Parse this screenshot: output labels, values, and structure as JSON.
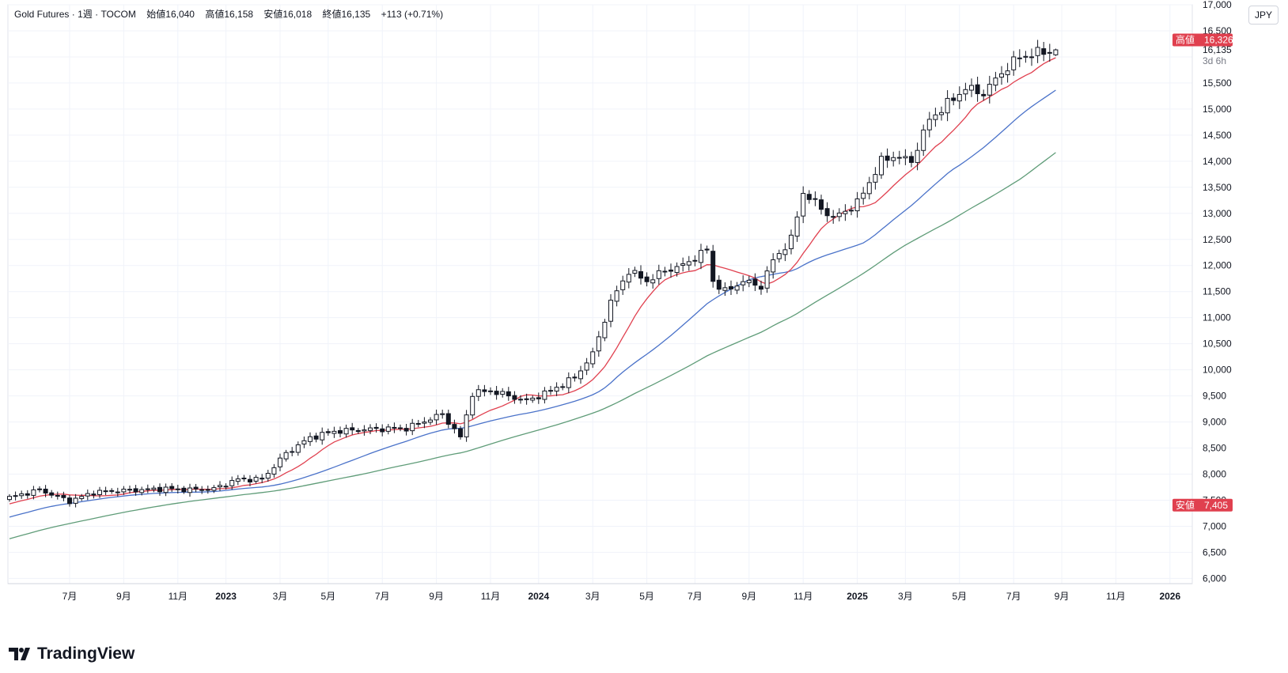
{
  "header": {
    "symbol": "Gold Futures",
    "interval": "1週",
    "exchange": "TOCOM",
    "open_label": "始値",
    "open": "16,040",
    "high_label": "高値",
    "high": "16,158",
    "low_label": "安値",
    "low": "16,018",
    "close_label": "終値",
    "close": "16,135",
    "change": "+113 (+0.71%)"
  },
  "currency_button": "JPY",
  "brand": "TradingView",
  "markers": {
    "high_label": "高値",
    "high_value": "16,326",
    "high_num": 16326,
    "low_label": "安値",
    "low_value": "7,405",
    "low_num": 7405,
    "last_value": "16,135",
    "last_num": 16135,
    "countdown": "3d 6h"
  },
  "colors": {
    "up": "#131722",
    "down": "#131722",
    "ma_fast": "#e0404f",
    "ma_mid": "#4a72c9",
    "ma_slow": "#5f9c78",
    "marker": "#e0404f",
    "grid": "#f0f3fa"
  },
  "chart_data": {
    "type": "candlestick",
    "title": "Gold Futures · 1週 · TOCOM",
    "ylim": [
      5900,
      17000
    ],
    "y_ticks": [
      6000,
      6500,
      7000,
      7500,
      8000,
      8500,
      9000,
      9500,
      10000,
      10500,
      11000,
      11500,
      12000,
      12500,
      13000,
      13500,
      14000,
      14500,
      15000,
      15500,
      16000,
      16500,
      17000
    ],
    "y_tick_labels": [
      "6,000",
      "6,500",
      "7,000",
      "7,500",
      "8,000",
      "8,500",
      "9,000",
      "9,500",
      "10,000",
      "10,500",
      "11,000",
      "11,500",
      "12,000",
      "12,500",
      "13,000",
      "13,500",
      "14,000",
      "14,500",
      "15,000",
      "15,500",
      "",
      "16,500",
      "17,000"
    ],
    "x_ticks": [
      {
        "label": "7月",
        "week": 10,
        "bold": false
      },
      {
        "label": "9月",
        "week": 19,
        "bold": false
      },
      {
        "label": "11月",
        "week": 28,
        "bold": false
      },
      {
        "label": "2023",
        "week": 36,
        "bold": true
      },
      {
        "label": "3月",
        "week": 45,
        "bold": false
      },
      {
        "label": "5月",
        "week": 53,
        "bold": false
      },
      {
        "label": "7月",
        "week": 62,
        "bold": false
      },
      {
        "label": "9月",
        "week": 71,
        "bold": false
      },
      {
        "label": "11月",
        "week": 80,
        "bold": false
      },
      {
        "label": "2024",
        "week": 88,
        "bold": true
      },
      {
        "label": "3月",
        "week": 97,
        "bold": false
      },
      {
        "label": "5月",
        "week": 106,
        "bold": false
      },
      {
        "label": "7月",
        "week": 114,
        "bold": false
      },
      {
        "label": "9月",
        "week": 123,
        "bold": false
      },
      {
        "label": "11月",
        "week": 132,
        "bold": false
      },
      {
        "label": "2025",
        "week": 141,
        "bold": true
      },
      {
        "label": "3月",
        "week": 149,
        "bold": false
      },
      {
        "label": "5月",
        "week": 158,
        "bold": false
      },
      {
        "label": "7月",
        "week": 167,
        "bold": false
      },
      {
        "label": "9月",
        "week": 175,
        "bold": false
      },
      {
        "label": "11月",
        "week": 184,
        "bold": false
      },
      {
        "label": "2026",
        "week": 193,
        "bold": true
      }
    ],
    "close_anchors": [
      [
        0,
        7550
      ],
      [
        5,
        7700
      ],
      [
        10,
        7480
      ],
      [
        14,
        7650
      ],
      [
        18,
        7680
      ],
      [
        22,
        7700
      ],
      [
        26,
        7720
      ],
      [
        30,
        7700
      ],
      [
        34,
        7720
      ],
      [
        38,
        7900
      ],
      [
        42,
        7900
      ],
      [
        46,
        8400
      ],
      [
        50,
        8700
      ],
      [
        54,
        8820
      ],
      [
        60,
        8860
      ],
      [
        66,
        8880
      ],
      [
        72,
        9150
      ],
      [
        75,
        8700
      ],
      [
        77,
        9550
      ],
      [
        80,
        9600
      ],
      [
        83,
        9500
      ],
      [
        86,
        9400
      ],
      [
        90,
        9600
      ],
      [
        94,
        9850
      ],
      [
        97,
        10300
      ],
      [
        100,
        11300
      ],
      [
        103,
        11900
      ],
      [
        106,
        11700
      ],
      [
        109,
        11900
      ],
      [
        112,
        12000
      ],
      [
        116,
        12300
      ],
      [
        117,
        11700
      ],
      [
        119,
        11500
      ],
      [
        122,
        11700
      ],
      [
        125,
        11600
      ],
      [
        127,
        12100
      ],
      [
        130,
        12500
      ],
      [
        132,
        13400
      ],
      [
        135,
        13100
      ],
      [
        137,
        12900
      ],
      [
        141,
        13200
      ],
      [
        145,
        14000
      ],
      [
        147,
        14100
      ],
      [
        150,
        14000
      ],
      [
        153,
        14800
      ],
      [
        156,
        15100
      ],
      [
        159,
        15400
      ],
      [
        162,
        15300
      ],
      [
        165,
        15700
      ],
      [
        168,
        16000
      ],
      [
        172,
        16100
      ],
      [
        174,
        16135
      ]
    ],
    "series": [
      {
        "name": "Weekly candles (OHLC)",
        "weeks": 175,
        "start": "2022-05",
        "last_close": 16135,
        "period_high": 16326,
        "period_low": 7405
      },
      {
        "name": "MA fast",
        "color": "#e0404f",
        "period": 10
      },
      {
        "name": "MA mid",
        "color": "#4a72c9",
        "period": 26
      },
      {
        "name": "MA slow",
        "color": "#5f9c78",
        "period": 52
      }
    ]
  }
}
